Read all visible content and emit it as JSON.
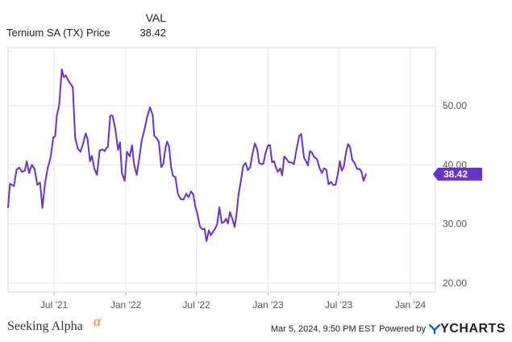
{
  "legend": {
    "column_header": "VAL",
    "series_name": "Ternium SA (TX) Price",
    "series_value": "38.42"
  },
  "chart_data": {
    "type": "line",
    "title": "",
    "xlabel": "",
    "ylabel": "",
    "x_ticks": [
      "Jul '21",
      "Jan '22",
      "Jul '22",
      "Jan '23",
      "Jul '23",
      "Jan '24"
    ],
    "x_tick_dates": [
      "2021-07-01",
      "2022-01-01",
      "2022-07-01",
      "2023-01-01",
      "2023-07-01",
      "2024-01-01"
    ],
    "y_ticks": [
      "20.00",
      "30.00",
      "40.00",
      "50.00"
    ],
    "y_tick_values": [
      20,
      30,
      40,
      50
    ],
    "ylim": [
      18.5,
      59.8
    ],
    "xlim": [
      "2021-03-05",
      "2024-03-05"
    ],
    "grid": true,
    "line_color": "#6633cc",
    "last_value": 38.42,
    "last_value_label": "38.42",
    "series": [
      {
        "name": "Ternium SA (TX) Price",
        "points": [
          [
            "2021-03-05",
            32.8
          ],
          [
            "2021-03-10",
            36.8
          ],
          [
            "2021-03-20",
            36.4
          ],
          [
            "2021-03-27",
            39.2
          ],
          [
            "2021-04-03",
            39.5
          ],
          [
            "2021-04-10",
            38.8
          ],
          [
            "2021-04-17",
            39.0
          ],
          [
            "2021-04-22",
            40.6
          ],
          [
            "2021-04-28",
            38.6
          ],
          [
            "2021-05-05",
            40.0
          ],
          [
            "2021-05-12",
            39.3
          ],
          [
            "2021-05-19",
            36.6
          ],
          [
            "2021-05-26",
            37.0
          ],
          [
            "2021-06-01",
            32.7
          ],
          [
            "2021-06-08",
            36.9
          ],
          [
            "2021-06-15",
            39.5
          ],
          [
            "2021-06-22",
            41.2
          ],
          [
            "2021-06-29",
            44.6
          ],
          [
            "2021-07-04",
            44.8
          ],
          [
            "2021-07-08",
            48.2
          ],
          [
            "2021-07-14",
            50.0
          ],
          [
            "2021-07-21",
            56.1
          ],
          [
            "2021-07-26",
            54.8
          ],
          [
            "2021-07-31",
            55.1
          ],
          [
            "2021-08-06",
            54.3
          ],
          [
            "2021-08-13",
            53.6
          ],
          [
            "2021-08-18",
            53.1
          ],
          [
            "2021-08-24",
            44.6
          ],
          [
            "2021-08-31",
            42.7
          ],
          [
            "2021-09-07",
            42.2
          ],
          [
            "2021-09-14",
            43.7
          ],
          [
            "2021-09-20",
            45.3
          ],
          [
            "2021-09-25",
            44.4
          ],
          [
            "2021-10-01",
            40.6
          ],
          [
            "2021-10-06",
            41.5
          ],
          [
            "2021-10-12",
            39.4
          ],
          [
            "2021-10-19",
            38.3
          ],
          [
            "2021-10-26",
            42.4
          ],
          [
            "2021-11-02",
            42.6
          ],
          [
            "2021-11-08",
            42.3
          ],
          [
            "2021-11-12",
            42.8
          ],
          [
            "2021-11-16",
            43.0
          ],
          [
            "2021-11-22",
            48.3
          ],
          [
            "2021-11-28",
            48.3
          ],
          [
            "2021-12-05",
            46.1
          ],
          [
            "2021-12-12",
            42.5
          ],
          [
            "2021-12-17",
            43.8
          ],
          [
            "2021-12-22",
            38.6
          ],
          [
            "2021-12-29",
            37.3
          ],
          [
            "2022-01-04",
            42.2
          ],
          [
            "2022-01-11",
            41.4
          ],
          [
            "2022-01-17",
            43.3
          ],
          [
            "2022-01-22",
            40.1
          ],
          [
            "2022-01-29",
            38.3
          ],
          [
            "2022-02-04",
            40.9
          ],
          [
            "2022-02-11",
            44.2
          ],
          [
            "2022-02-18",
            46.0
          ],
          [
            "2022-02-25",
            48.1
          ],
          [
            "2022-03-04",
            49.7
          ],
          [
            "2022-03-11",
            48.4
          ],
          [
            "2022-03-15",
            44.9
          ],
          [
            "2022-03-21",
            44.5
          ],
          [
            "2022-03-27",
            43.8
          ],
          [
            "2022-04-02",
            39.6
          ],
          [
            "2022-04-07",
            40.1
          ],
          [
            "2022-04-12",
            42.6
          ],
          [
            "2022-04-17",
            43.9
          ],
          [
            "2022-04-22",
            43.1
          ],
          [
            "2022-04-27",
            39.7
          ],
          [
            "2022-05-02",
            38.1
          ],
          [
            "2022-05-08",
            37.9
          ],
          [
            "2022-05-15",
            35.0
          ],
          [
            "2022-05-22",
            34.2
          ],
          [
            "2022-05-29",
            34.1
          ],
          [
            "2022-06-05",
            35.1
          ],
          [
            "2022-06-11",
            34.5
          ],
          [
            "2022-06-17",
            35.5
          ],
          [
            "2022-06-23",
            35.0
          ],
          [
            "2022-06-28",
            33.0
          ],
          [
            "2022-07-04",
            31.6
          ],
          [
            "2022-07-10",
            29.6
          ],
          [
            "2022-07-16",
            29.1
          ],
          [
            "2022-07-22",
            29.2
          ],
          [
            "2022-07-27",
            27.1
          ],
          [
            "2022-08-02",
            28.9
          ],
          [
            "2022-08-07",
            28.1
          ],
          [
            "2022-08-12",
            28.6
          ],
          [
            "2022-08-17",
            29.1
          ],
          [
            "2022-08-23",
            29.9
          ],
          [
            "2022-08-29",
            32.8
          ],
          [
            "2022-09-04",
            30.2
          ],
          [
            "2022-09-10",
            30.3
          ],
          [
            "2022-09-15",
            30.9
          ],
          [
            "2022-09-20",
            30.1
          ],
          [
            "2022-09-25",
            32.0
          ],
          [
            "2022-10-02",
            30.7
          ],
          [
            "2022-10-07",
            29.5
          ],
          [
            "2022-10-12",
            31.7
          ],
          [
            "2022-10-17",
            34.9
          ],
          [
            "2022-10-23",
            37.2
          ],
          [
            "2022-10-29",
            39.8
          ],
          [
            "2022-11-04",
            40.3
          ],
          [
            "2022-11-10",
            39.1
          ],
          [
            "2022-11-16",
            39.6
          ],
          [
            "2022-11-22",
            41.9
          ],
          [
            "2022-11-28",
            43.6
          ],
          [
            "2022-12-04",
            42.6
          ],
          [
            "2022-12-09",
            40.3
          ],
          [
            "2022-12-15",
            40.1
          ],
          [
            "2022-12-20",
            40.2
          ],
          [
            "2022-12-25",
            41.9
          ],
          [
            "2023-01-01",
            43.3
          ],
          [
            "2023-01-06",
            43.3
          ],
          [
            "2023-01-11",
            40.4
          ],
          [
            "2023-01-16",
            40.6
          ],
          [
            "2023-01-21",
            39.6
          ],
          [
            "2023-01-26",
            38.8
          ],
          [
            "2023-02-01",
            39.4
          ],
          [
            "2023-02-06",
            38.2
          ],
          [
            "2023-02-11",
            41.4
          ],
          [
            "2023-02-17",
            41.0
          ],
          [
            "2023-02-23",
            40.4
          ],
          [
            "2023-03-01",
            40.4
          ],
          [
            "2023-03-08",
            40.1
          ],
          [
            "2023-03-15",
            42.6
          ],
          [
            "2023-03-22",
            44.9
          ],
          [
            "2023-03-27",
            45.2
          ],
          [
            "2023-04-03",
            41.2
          ],
          [
            "2023-04-08",
            40.6
          ],
          [
            "2023-04-13",
            39.9
          ],
          [
            "2023-04-18",
            42.3
          ],
          [
            "2023-04-23",
            42.1
          ],
          [
            "2023-04-29",
            41.3
          ],
          [
            "2023-05-06",
            41.0
          ],
          [
            "2023-05-13",
            39.4
          ],
          [
            "2023-05-19",
            38.6
          ],
          [
            "2023-05-24",
            39.4
          ],
          [
            "2023-05-30",
            39.2
          ],
          [
            "2023-06-05",
            36.7
          ],
          [
            "2023-06-11",
            37.1
          ],
          [
            "2023-06-17",
            36.6
          ],
          [
            "2023-06-23",
            36.6
          ],
          [
            "2023-06-29",
            38.5
          ],
          [
            "2023-07-04",
            40.6
          ],
          [
            "2023-07-09",
            39.0
          ],
          [
            "2023-07-14",
            39.7
          ],
          [
            "2023-07-20",
            42.2
          ],
          [
            "2023-07-25",
            43.5
          ],
          [
            "2023-07-30",
            43.0
          ],
          [
            "2023-08-05",
            40.8
          ],
          [
            "2023-08-11",
            40.3
          ],
          [
            "2023-08-17",
            39.3
          ],
          [
            "2023-08-23",
            39.3
          ],
          [
            "2023-08-28",
            38.9
          ],
          [
            "2023-09-03",
            37.3
          ],
          [
            "2023-09-09",
            38.4
          ]
        ]
      }
    ]
  },
  "footer": {
    "brand": "Seeking Alpha",
    "brand_mark": "α",
    "timestamp": "Mar 5, 2024, 9:50 PM EST",
    "powered_by": "Powered by",
    "provider": "YCHARTS"
  }
}
